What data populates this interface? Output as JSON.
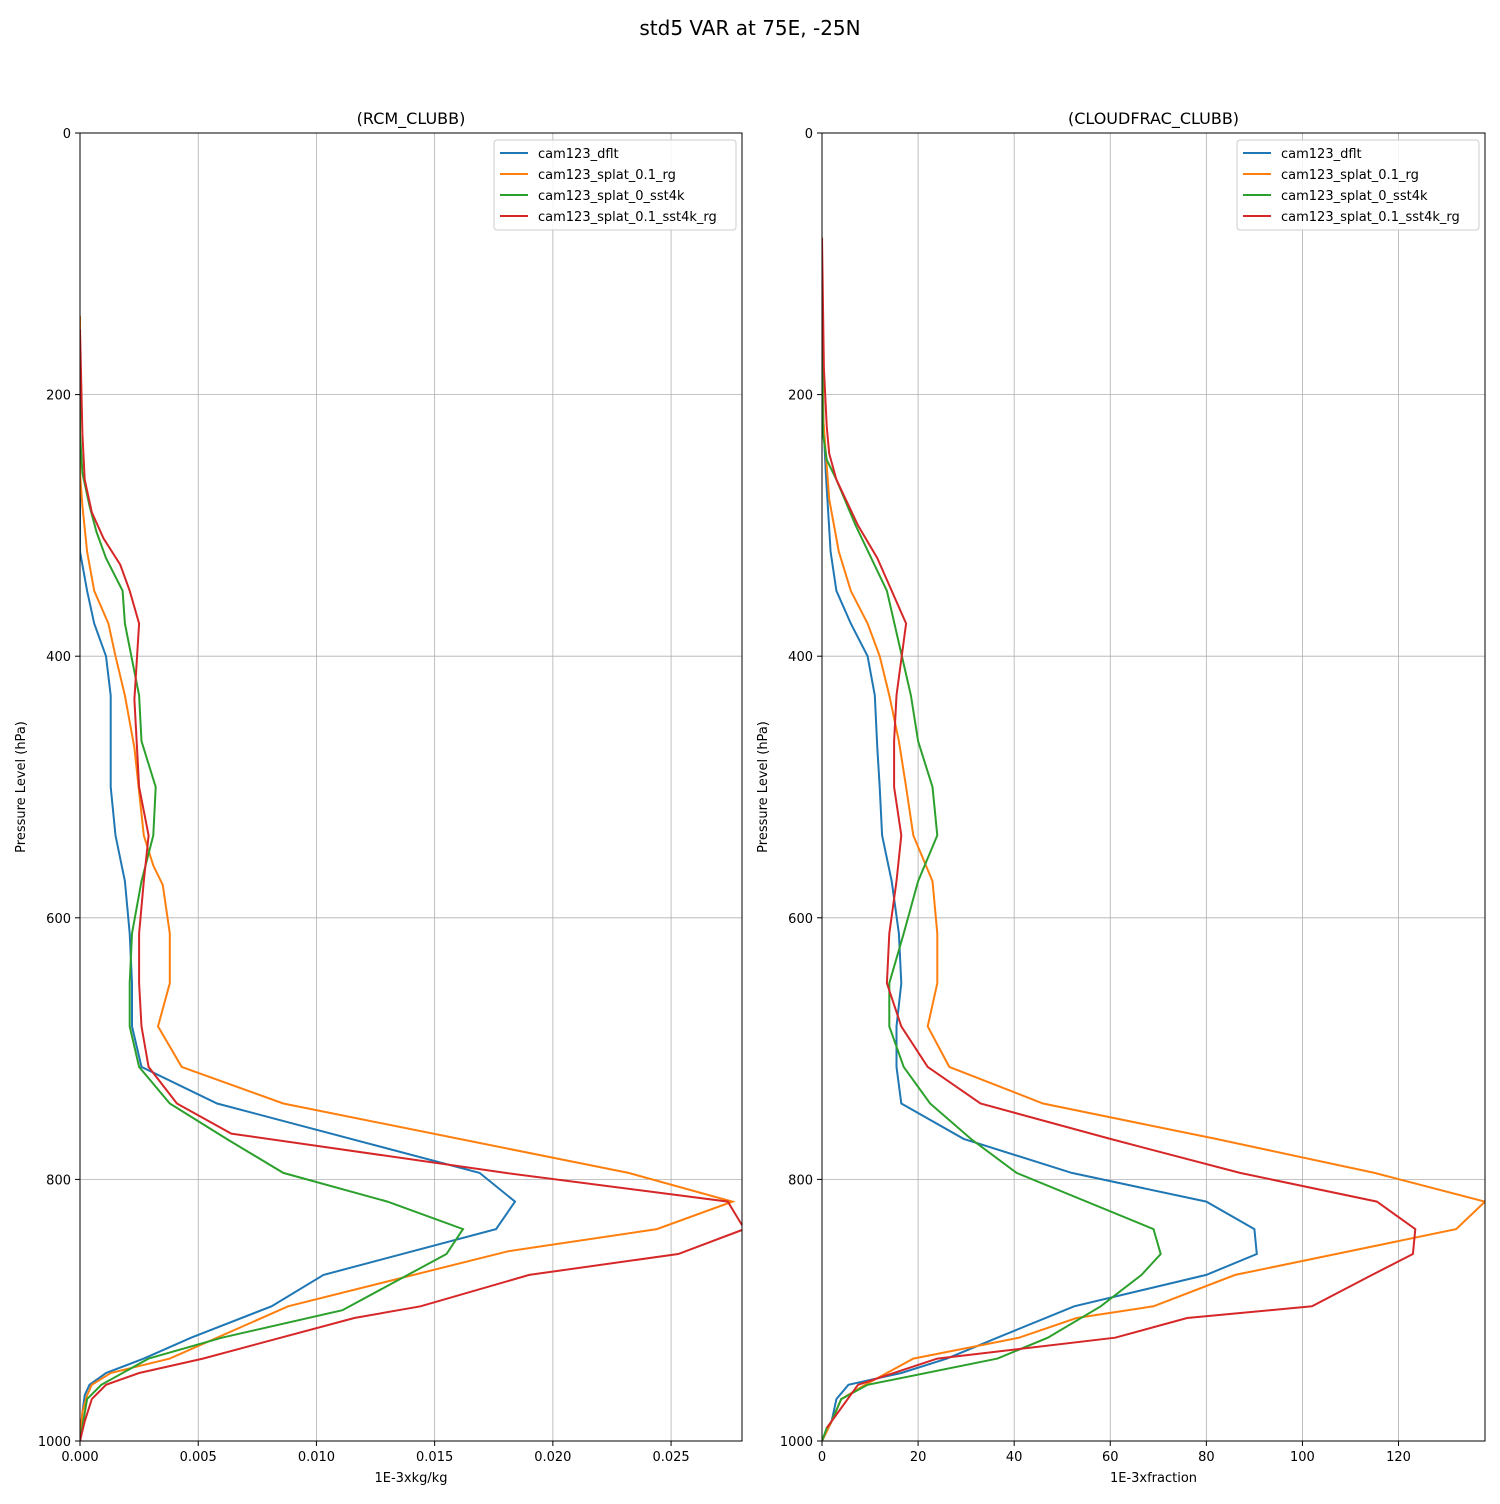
{
  "figure": {
    "title": "std5 VAR at 75E, -25N"
  },
  "chart_data": [
    {
      "type": "line",
      "title": "(RCM_CLUBB)",
      "xlabel": "1E-3xkg/kg",
      "ylabel": "Pressure Level (hPa)",
      "xlim": [
        0,
        0.028
      ],
      "ylim": [
        1000,
        0
      ],
      "x_ticks": [
        "0.000",
        "0.005",
        "0.010",
        "0.015",
        "0.020",
        "0.025"
      ],
      "y_ticks": [
        "0",
        "200",
        "400",
        "600",
        "800",
        "1000"
      ],
      "grid": true,
      "legend_position": "upper right",
      "series": [
        {
          "name": "cam123_dflt",
          "color": "#1f77b4",
          "x": [
            0,
            0,
            0,
            0.0003,
            0.0006,
            0.0011,
            0.0013,
            0.0013,
            0.0013,
            0.0015,
            0.0019,
            0.0021,
            0.0022,
            0.0022,
            0.0026,
            0.0058,
            0.0169,
            0.0184,
            0.0176,
            0.0103,
            0.0081,
            0.0047,
            0.0027,
            0.0011,
            0.0004,
            0.0002,
            0.0001,
            0
          ],
          "y": [
            140,
            260,
            320,
            350,
            375,
            400,
            430,
            470,
            500,
            537,
            572,
            612,
            650,
            683,
            714,
            742,
            795,
            817,
            838,
            873,
            897,
            921,
            937,
            948,
            957,
            965,
            978,
            1000
          ]
        },
        {
          "name": "cam123_splat_0.1_rg",
          "color": "#ff7f0e",
          "x": [
            0,
            0,
            0.0001,
            0.0003,
            0.0006,
            0.0012,
            0.0015,
            0.0019,
            0.0023,
            0.0027,
            0.0031,
            0.0035,
            0.0038,
            0.0038,
            0.0033,
            0.0043,
            0.0086,
            0.0232,
            0.0276,
            0.0244,
            0.0181,
            0.0088,
            0.0038,
            0.0013,
            0.0005,
            0.0003,
            0.0001,
            0
          ],
          "y": [
            140,
            260,
            285,
            320,
            350,
            375,
            400,
            430,
            470,
            537,
            560,
            575,
            612,
            650,
            683,
            714,
            742,
            795,
            817,
            838,
            855,
            897,
            937,
            948,
            957,
            965,
            978,
            1000
          ]
        },
        {
          "name": "cam123_splat_0_sst4k",
          "color": "#2ca02c",
          "x": [
            0,
            0,
            0.0001,
            0.0004,
            0.0007,
            0.0011,
            0.0018,
            0.0019,
            0.0025,
            0.0026,
            0.0032,
            0.0031,
            0.0026,
            0.0022,
            0.0021,
            0.0021,
            0.0025,
            0.0038,
            0.0062,
            0.0086,
            0.013,
            0.0162,
            0.0155,
            0.0111,
            0.006,
            0.0029,
            0.0009,
            0.0003,
            0
          ],
          "y": [
            150,
            230,
            260,
            285,
            305,
            325,
            350,
            375,
            430,
            465,
            500,
            537,
            572,
            612,
            650,
            683,
            714,
            742,
            769,
            795,
            817,
            838,
            857,
            900,
            921,
            937,
            957,
            968,
            1000
          ]
        },
        {
          "name": "cam123_splat_0.1_sst4k_rg",
          "color": "#d62728",
          "x": [
            0,
            0.0001,
            0.0002,
            0.0005,
            0.001,
            0.0017,
            0.0021,
            0.0025,
            0.0023,
            0.0025,
            0.0029,
            0.0027,
            0.0025,
            0.0025,
            0.0026,
            0.0029,
            0.0041,
            0.0064,
            0.018,
            0.0274,
            0.0281,
            0.0253,
            0.019,
            0.0144,
            0.0116,
            0.0052,
            0.0025,
            0.0011,
            0.0005,
            0.0002,
            0
          ],
          "y": [
            150,
            230,
            265,
            290,
            310,
            330,
            350,
            375,
            433,
            500,
            537,
            572,
            612,
            650,
            683,
            714,
            742,
            765,
            795,
            817,
            838,
            857,
            873,
            897,
            906,
            937,
            948,
            957,
            968,
            985,
            1000
          ]
        }
      ]
    },
    {
      "type": "line",
      "title": "(CLOUDFRAC_CLUBB)",
      "xlabel": "1E-3xfraction",
      "ylabel": "Pressure Level (hPa)",
      "xlim": [
        0,
        138
      ],
      "ylim": [
        1000,
        0
      ],
      "x_ticks": [
        "0",
        "20",
        "40",
        "60",
        "80",
        "100",
        "120"
      ],
      "y_ticks": [
        "0",
        "200",
        "400",
        "600",
        "800",
        "1000"
      ],
      "grid": true,
      "legend_position": "upper right",
      "series": [
        {
          "name": "cam123_dflt",
          "color": "#1f77b4",
          "x": [
            0,
            0.3,
            0.8,
            1.8,
            3,
            6,
            9.5,
            11,
            11.5,
            12,
            12.5,
            14.5,
            16,
            16.5,
            15.5,
            15.5,
            16.5,
            29.5,
            52,
            80,
            90,
            90.5,
            80,
            52.5,
            36.5,
            26,
            16.5,
            5.5,
            3,
            2,
            0
          ],
          "y": [
            140,
            220,
            260,
            320,
            350,
            375,
            400,
            430,
            470,
            500,
            537,
            572,
            612,
            650,
            683,
            714,
            742,
            769,
            795,
            817,
            838,
            857,
            873,
            897,
            921,
            937,
            948,
            957,
            968,
            985,
            1000
          ]
        },
        {
          "name": "cam123_splat_0.1_rg",
          "color": "#ff7f0e",
          "x": [
            0,
            0.3,
            1.5,
            3.5,
            6,
            9.5,
            12,
            14,
            16,
            17.5,
            19,
            23,
            24,
            24,
            22,
            26.5,
            46,
            82,
            115,
            138,
            132,
            107,
            86,
            69,
            53,
            41,
            19,
            9,
            4,
            2,
            0
          ],
          "y": [
            140,
            220,
            280,
            320,
            350,
            375,
            400,
            430,
            465,
            500,
            537,
            572,
            612,
            650,
            683,
            714,
            742,
            769,
            795,
            817,
            838,
            857,
            873,
            897,
            906,
            921,
            937,
            957,
            968,
            985,
            1000
          ]
        },
        {
          "name": "cam123_splat_0_sst4k",
          "color": "#2ca02c",
          "x": [
            0,
            0.2,
            1,
            3,
            7,
            13.5,
            16,
            18.5,
            20,
            23,
            24,
            20,
            17,
            14,
            14,
            17,
            22.5,
            31,
            40.5,
            69,
            70.5,
            66.5,
            58,
            47,
            36.5,
            9.5,
            4,
            2,
            1,
            0
          ],
          "y": [
            140,
            230,
            250,
            265,
            300,
            350,
            390,
            430,
            465,
            500,
            537,
            572,
            612,
            650,
            683,
            714,
            742,
            769,
            795,
            838,
            857,
            873,
            897,
            921,
            937,
            957,
            968,
            985,
            990,
            1000
          ]
        },
        {
          "name": "cam123_splat_0.1_sst4k_rg",
          "color": "#d62728",
          "x": [
            0,
            0.4,
            1,
            1.5,
            3,
            7.5,
            11.5,
            14.5,
            17.5,
            15.5,
            15,
            15,
            16.5,
            15.5,
            14,
            13.5,
            16.5,
            22,
            33,
            60,
            87,
            115.5,
            123.5,
            123,
            114.5,
            102,
            76,
            61,
            24,
            7.5,
            1
          ],
          "y": [
            80,
            180,
            225,
            245,
            265,
            300,
            325,
            350,
            375,
            430,
            465,
            500,
            537,
            572,
            612,
            650,
            683,
            714,
            742,
            769,
            795,
            817,
            838,
            857,
            873,
            897,
            906,
            921,
            937,
            957,
            990
          ]
        }
      ]
    }
  ]
}
